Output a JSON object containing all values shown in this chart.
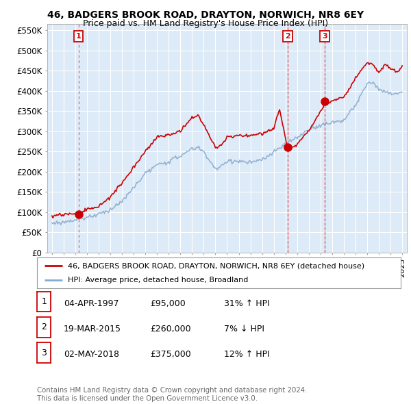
{
  "title": "46, BADGERS BROOK ROAD, DRAYTON, NORWICH, NR8 6EY",
  "subtitle": "Price paid vs. HM Land Registry's House Price Index (HPI)",
  "yticks": [
    0,
    50000,
    100000,
    150000,
    200000,
    250000,
    300000,
    350000,
    400000,
    450000,
    500000,
    550000
  ],
  "ytick_labels": [
    "£0",
    "£50K",
    "£100K",
    "£150K",
    "£200K",
    "£250K",
    "£300K",
    "£350K",
    "£400K",
    "£450K",
    "£500K",
    "£550K"
  ],
  "xmin": 1994.6,
  "xmax": 2025.4,
  "ymin": 0,
  "ymax": 565000,
  "plot_bg_color": "#ddeaf7",
  "fig_bg_color": "#ffffff",
  "grid_color": "#ffffff",
  "sale_points": [
    {
      "year": 1997.27,
      "price": 95000,
      "label": "1"
    },
    {
      "year": 2015.22,
      "price": 260000,
      "label": "2"
    },
    {
      "year": 2018.34,
      "price": 375000,
      "label": "3"
    }
  ],
  "sale_line_color": "#cc0000",
  "hpi_line_color": "#88aacc",
  "vline_color": "#dd3333",
  "legend_sale_label": "46, BADGERS BROOK ROAD, DRAYTON, NORWICH, NR8 6EY (detached house)",
  "legend_hpi_label": "HPI: Average price, detached house, Broadland",
  "table_rows": [
    {
      "num": "1",
      "date": "04-APR-1997",
      "price": "£95,000",
      "hpi": "31% ↑ HPI"
    },
    {
      "num": "2",
      "date": "19-MAR-2015",
      "price": "£260,000",
      "hpi": "7% ↓ HPI"
    },
    {
      "num": "3",
      "date": "02-MAY-2018",
      "price": "£375,000",
      "hpi": "12% ↑ HPI"
    }
  ],
  "footer": "Contains HM Land Registry data © Crown copyright and database right 2024.\nThis data is licensed under the Open Government Licence v3.0."
}
